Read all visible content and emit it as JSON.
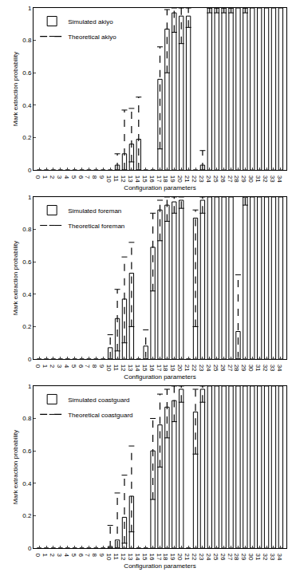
{
  "chart_data": [
    {
      "type": "bar",
      "x_label": "Configuration parameters",
      "y_label": "Mark extraction probability",
      "categories": [
        "0",
        "1",
        "2",
        "3",
        "4",
        "5",
        "6",
        "7",
        "8",
        "9",
        "10",
        "11",
        "12",
        "13",
        "14",
        "15",
        "16",
        "17",
        "18",
        "19",
        "20",
        "21",
        "22",
        "23",
        "24",
        "25",
        "26",
        "27",
        "28",
        "29",
        "30",
        "31",
        "32",
        "33",
        "34"
      ],
      "ylim": [
        0,
        1
      ],
      "yticks": [
        0,
        0.2,
        0.4,
        0.6,
        0.8,
        1
      ],
      "legend": "upper left",
      "series": [
        {
          "name": "Simulated akiyo",
          "type": "bar",
          "color": "#000000",
          "line_style": "solid",
          "values": [
            0,
            0,
            0,
            0,
            0,
            0,
            0,
            0,
            0,
            0,
            0,
            0.03,
            0.1,
            0.16,
            0.19,
            0,
            0,
            0.56,
            0.87,
            0.97,
            0.95,
            0.95,
            0,
            0.03,
            1,
            1,
            1,
            1,
            1,
            1,
            1,
            1,
            1,
            1,
            1
          ]
        },
        {
          "name": "Theoretical akiyo",
          "type": "range",
          "color": "#000000",
          "line_style": "dashed",
          "low": [
            null,
            null,
            null,
            null,
            null,
            null,
            null,
            null,
            null,
            null,
            null,
            0,
            0,
            0.05,
            0,
            null,
            null,
            0.13,
            0.6,
            0.85,
            0.78,
            0.88,
            null,
            0,
            0.97,
            0.97,
            0.97,
            0.97,
            null,
            0.97,
            null,
            null,
            null,
            null,
            null
          ],
          "high": [
            null,
            null,
            null,
            null,
            null,
            null,
            null,
            null,
            null,
            null,
            null,
            0.1,
            0.37,
            0.38,
            0.45,
            null,
            null,
            0.76,
            0.99,
            1,
            1,
            1,
            null,
            0.12,
            1,
            1,
            1,
            1,
            null,
            1,
            null,
            null,
            null,
            null,
            null
          ]
        }
      ]
    },
    {
      "type": "bar",
      "x_label": "Configuration parameters",
      "y_label": "Mark extraction probability",
      "categories": [
        "0",
        "1",
        "2",
        "3",
        "4",
        "5",
        "6",
        "7",
        "8",
        "9",
        "10",
        "11",
        "12",
        "13",
        "14",
        "15",
        "16",
        "17",
        "18",
        "19",
        "20",
        "21",
        "22",
        "23",
        "24",
        "25",
        "26",
        "27",
        "28",
        "29",
        "30",
        "31",
        "32",
        "33",
        "34"
      ],
      "ylim": [
        0,
        1
      ],
      "yticks": [
        0,
        0.2,
        0.4,
        0.6,
        0.8,
        1
      ],
      "legend": "upper left",
      "series": [
        {
          "name": "Simulated foreman",
          "type": "bar",
          "color": "#000000",
          "line_style": "solid",
          "values": [
            0,
            0,
            0,
            0,
            0,
            0,
            0,
            0,
            0,
            0,
            0.07,
            0.25,
            0.37,
            0.53,
            0,
            0.08,
            0.69,
            0.92,
            0.95,
            0.97,
            0.98,
            0,
            0.87,
            0.98,
            1,
            1,
            1,
            1,
            0.17,
            1,
            1,
            1,
            1,
            1,
            1
          ]
        },
        {
          "name": "Theoretical foreman",
          "type": "range",
          "color": "#000000",
          "line_style": "dashed",
          "low": [
            null,
            null,
            null,
            null,
            null,
            null,
            null,
            null,
            null,
            null,
            0,
            0.05,
            0.1,
            0.2,
            null,
            0,
            0.42,
            0.73,
            0.85,
            0.9,
            0.93,
            null,
            0.2,
            0.9,
            null,
            null,
            null,
            null,
            0,
            0.95,
            null,
            null,
            null,
            null,
            null
          ],
          "high": [
            null,
            null,
            null,
            null,
            null,
            null,
            null,
            null,
            null,
            null,
            0.15,
            0.43,
            0.63,
            0.72,
            null,
            0.18,
            0.9,
            0.98,
            1,
            1,
            1,
            null,
            0.92,
            1,
            null,
            null,
            null,
            null,
            0.52,
            1,
            null,
            null,
            null,
            null,
            null
          ]
        }
      ]
    },
    {
      "type": "bar",
      "x_label": "Configuration parameters",
      "y_label": "Mark extraction probability",
      "categories": [
        "0",
        "1",
        "2",
        "3",
        "4",
        "5",
        "6",
        "7",
        "8",
        "9",
        "10",
        "11",
        "12",
        "13",
        "14",
        "15",
        "16",
        "17",
        "18",
        "19",
        "20",
        "21",
        "22",
        "23",
        "24",
        "25",
        "26",
        "27",
        "28",
        "29",
        "30",
        "31",
        "32",
        "33",
        "34"
      ],
      "ylim": [
        0,
        1
      ],
      "yticks": [
        0,
        0.2,
        0.4,
        0.6,
        0.8,
        1
      ],
      "legend": "upper left",
      "series": [
        {
          "name": "Simulated coastguard",
          "type": "bar",
          "color": "#000000",
          "line_style": "solid",
          "values": [
            0,
            0,
            0,
            0,
            0,
            0,
            0,
            0,
            0,
            0,
            0.01,
            0.05,
            0.19,
            0.32,
            0,
            0,
            0.6,
            0.76,
            0.87,
            0.91,
            0.98,
            0,
            0.84,
            0.98,
            1,
            1,
            1,
            1,
            1,
            1,
            1,
            1,
            1,
            1,
            1
          ]
        },
        {
          "name": "Theoretical coastguard",
          "type": "range",
          "color": "#000000",
          "line_style": "dashed",
          "low": [
            null,
            null,
            null,
            null,
            null,
            null,
            null,
            null,
            null,
            null,
            0,
            0,
            0.03,
            0.1,
            null,
            null,
            0.3,
            0.5,
            0.68,
            0.78,
            0.9,
            null,
            0.58,
            0.9,
            null,
            null,
            null,
            null,
            null,
            null,
            null,
            null,
            null,
            null,
            null
          ],
          "high": [
            null,
            null,
            null,
            null,
            null,
            null,
            null,
            null,
            null,
            null,
            0.14,
            0.34,
            0.45,
            0.63,
            null,
            null,
            0.8,
            0.95,
            0.98,
            1,
            1,
            null,
            0.98,
            1,
            null,
            null,
            null,
            null,
            null,
            null,
            null,
            null,
            null,
            null,
            null
          ]
        }
      ]
    }
  ]
}
